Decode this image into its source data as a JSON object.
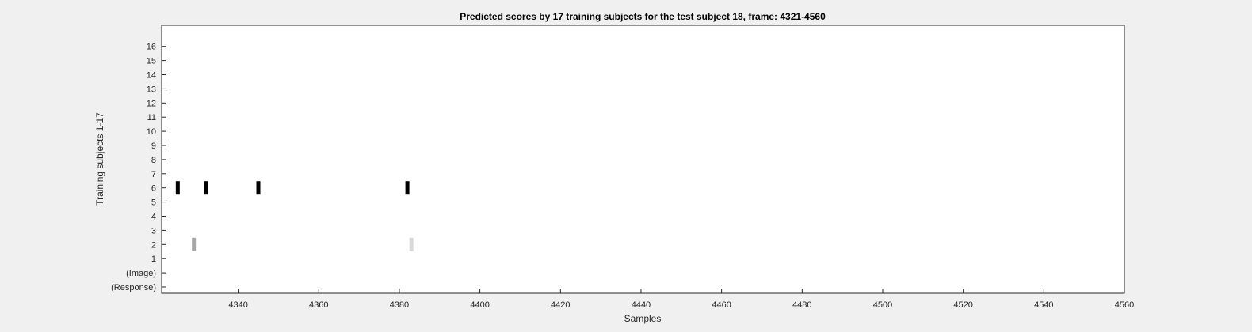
{
  "chart_data": {
    "type": "heatmap",
    "title": "Predicted scores by 17 training subjects for the test subject 18, frame: 4321-4560",
    "xlabel": "Samples",
    "ylabel": "Training subjects 1-17",
    "xlim": [
      4321,
      4560
    ],
    "xticks": [
      "4340",
      "4360",
      "4380",
      "4400",
      "4420",
      "4440",
      "4460",
      "4480",
      "4500",
      "4520",
      "4540",
      "4560"
    ],
    "yticks": [
      "(Response)",
      "(Image)",
      "1",
      "2",
      "3",
      "4",
      "5",
      "6",
      "7",
      "8",
      "9",
      "10",
      "11",
      "12",
      "13",
      "14",
      "15",
      "16"
    ],
    "grid": false,
    "points": [
      {
        "x": 4325,
        "row": "6",
        "color": "#000000"
      },
      {
        "x": 4332,
        "row": "6",
        "color": "#000000"
      },
      {
        "x": 4345,
        "row": "6",
        "color": "#000000"
      },
      {
        "x": 4382,
        "row": "6",
        "color": "#000000"
      },
      {
        "x": 4329,
        "row": "2",
        "color": "#a6a6a6"
      },
      {
        "x": 4383,
        "row": "2",
        "color": "#d9d9d9"
      }
    ]
  }
}
